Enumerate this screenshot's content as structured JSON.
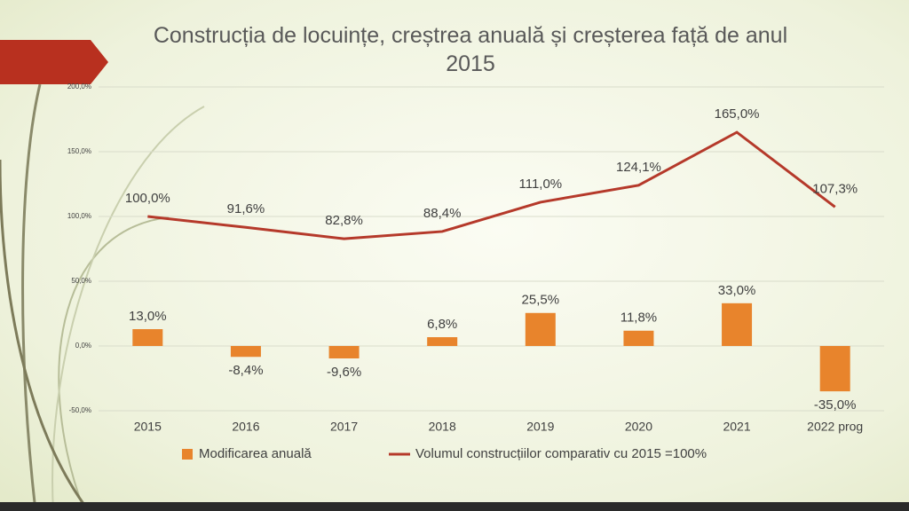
{
  "chart_data": {
    "type": "bar",
    "title": "Construcția de locuințe, creștrea anuală și creșterea față de anul 2015",
    "categories": [
      "2015",
      "2016",
      "2017",
      "2018",
      "2019",
      "2020",
      "2021",
      "2022 prog"
    ],
    "series": [
      {
        "name": "Modificarea anuală",
        "type": "bar",
        "color": "#e8842c",
        "values": [
          13.0,
          -8.4,
          -9.6,
          6.8,
          25.5,
          11.8,
          33.0,
          -35.0
        ],
        "value_labels": [
          "13,0%",
          "-8,4%",
          "-9,6%",
          "6,8%",
          "25,5%",
          "11,8%",
          "33,0%",
          "-35,0%"
        ]
      },
      {
        "name": "Volumul construcțiilor comparativ cu 2015 =100%",
        "type": "line",
        "color": "#b5392a",
        "values": [
          100.0,
          91.6,
          82.8,
          88.4,
          111.0,
          124.1,
          165.0,
          107.3
        ],
        "value_labels": [
          "100,0%",
          "91,6%",
          "82,8%",
          "88,4%",
          "111,0%",
          "124,1%",
          "165,0%",
          "107,3%"
        ]
      }
    ],
    "ylim": [
      -50,
      200
    ],
    "yticks": [
      {
        "value": -50,
        "label": "-50,0%"
      },
      {
        "value": 0,
        "label": "0,0%"
      },
      {
        "value": 50,
        "label": "50,0%"
      },
      {
        "value": 100,
        "label": "100,0%"
      },
      {
        "value": 150,
        "label": "150,0%"
      },
      {
        "value": 200,
        "label": "200,0%"
      }
    ],
    "grid": true,
    "legend": "bottom"
  }
}
